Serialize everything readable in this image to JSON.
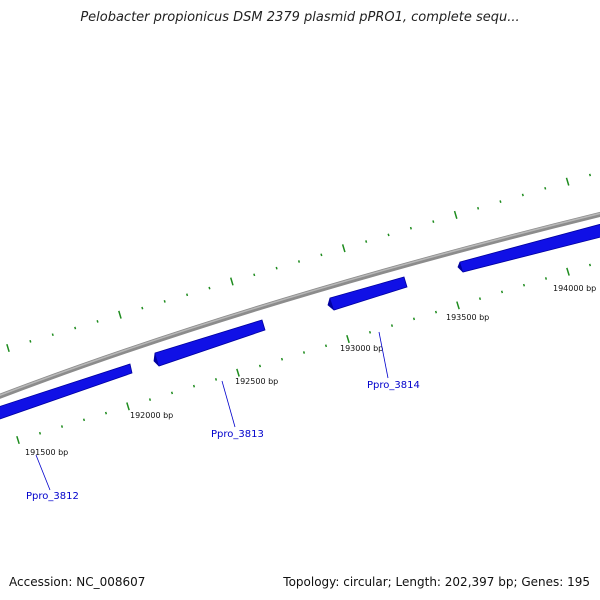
{
  "title": "Pelobacter propionicus DSM 2379 plasmid pPRO1, complete sequ...",
  "footer": {
    "accession": "Accession: NC_008607",
    "summary": "Topology: circular; Length: 202,397 bp; Genes: 195"
  },
  "colors": {
    "backbone": "#8c8c8c",
    "gene_fill": "#1010e6",
    "gene_shade": "#0000a0",
    "tick": "#1e8c1e",
    "gene_label": "#0000cc"
  },
  "position_labels": [
    "191500 bp",
    "192000 bp",
    "192500 bp",
    "193000 bp",
    "193500 bp",
    "194000 bp"
  ],
  "genes": [
    {
      "name": "Ppro_3812"
    },
    {
      "name": "Ppro_3813"
    },
    {
      "name": "Ppro_3814"
    }
  ]
}
